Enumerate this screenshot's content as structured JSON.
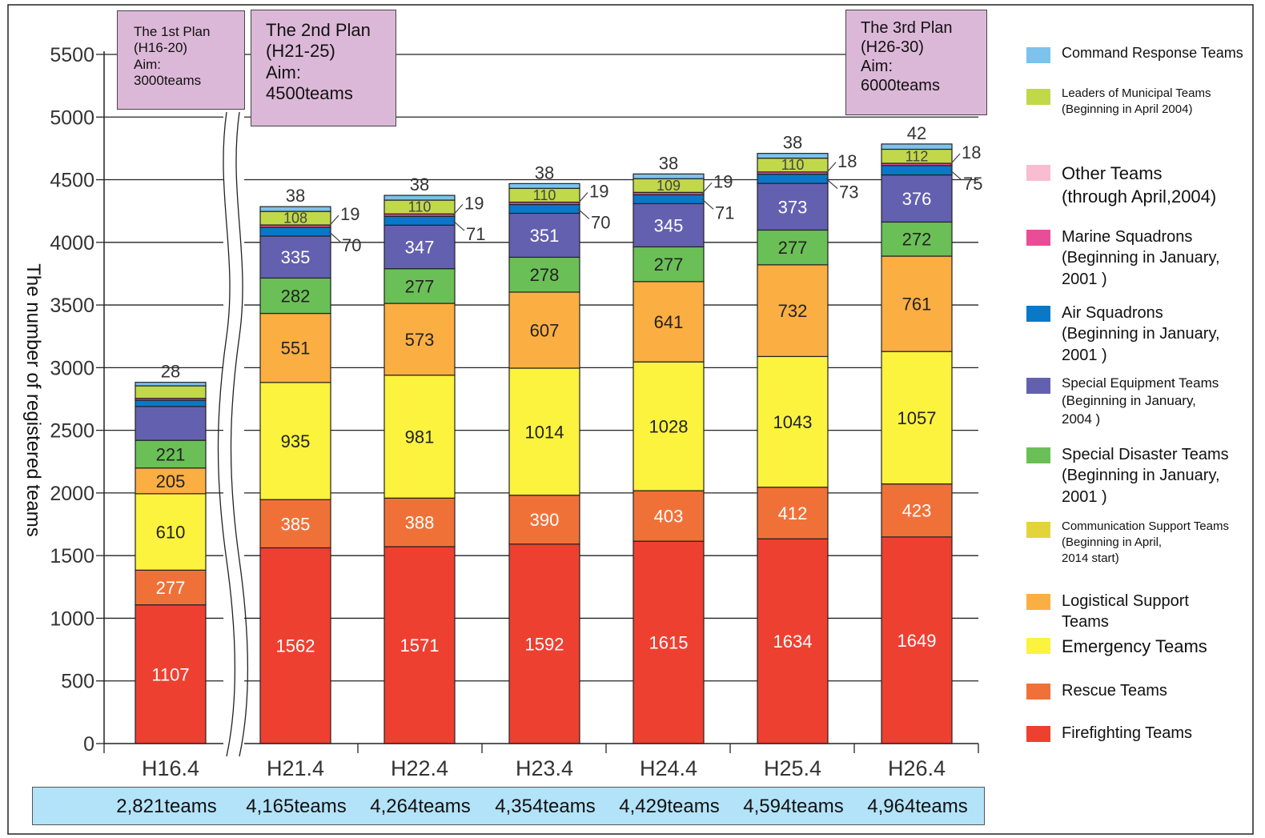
{
  "chart_data": {
    "type": "bar",
    "stacked": true,
    "ylabel": "The number of registered teams",
    "ylim": [
      0,
      5500
    ],
    "yticks": [
      0,
      500,
      1000,
      1500,
      2000,
      2500,
      3000,
      3500,
      4000,
      4500,
      5000,
      5500
    ],
    "grid": true,
    "legend_position": "right",
    "categories": [
      "H16.4",
      "H21.4",
      "H22.4",
      "H23.4",
      "H24.4",
      "H25.4",
      "H26.4"
    ],
    "totals": [
      "2,821teams",
      "4,165teams",
      "4,264teams",
      "4,354teams",
      "4,429teams",
      "4,594teams",
      "4,964teams"
    ],
    "plans": [
      {
        "label": "The 1st Plan\n(H16-20)\nAim:\n3000teams"
      },
      {
        "label": "The 2nd Plan\n(H21-25)\nAim:\n4500teams"
      },
      {
        "label": "The 3rd Plan\n(H26-30)\nAim:\n6000teams"
      }
    ],
    "series": [
      {
        "name": "Firefighting Teams",
        "color": "#ee4031",
        "values": [
          1107,
          1562,
          1571,
          1592,
          1615,
          1634,
          1649
        ]
      },
      {
        "name": "Rescue Teams",
        "color": "#f07138",
        "values": [
          277,
          385,
          388,
          390,
          403,
          412,
          423
        ]
      },
      {
        "name": "Emergency Teams",
        "color": "#fbf33d",
        "values": [
          610,
          935,
          981,
          1014,
          1028,
          1043,
          1057
        ]
      },
      {
        "name": "Logistical Support Teams",
        "color": "#fbae42",
        "values": [
          205,
          551,
          573,
          607,
          641,
          732,
          761
        ]
      },
      {
        "name": "Special Disaster Teams",
        "color": "#6ac056",
        "values": [
          221,
          282,
          277,
          278,
          277,
          277,
          272
        ]
      },
      {
        "name": "Special Equipment Teams",
        "color": "#6460b0",
        "values": [
          270,
          335,
          347,
          351,
          345,
          373,
          376
        ]
      },
      {
        "name": "Air Squadrons",
        "color": "#0a78c8",
        "values": [
          50,
          70,
          71,
          70,
          71,
          73,
          75
        ]
      },
      {
        "name": "Marine Squadrons",
        "color": "#e94d98",
        "values": [
          15,
          19,
          19,
          19,
          19,
          18,
          18
        ]
      },
      {
        "name": "Leaders of Municipal Teams",
        "color": "#c1d84a",
        "values": [
          100,
          108,
          110,
          110,
          109,
          110,
          112
        ]
      },
      {
        "name": "Command Response Teams",
        "color": "#7bc3ec",
        "values": [
          28,
          38,
          38,
          38,
          38,
          38,
          42
        ]
      }
    ],
    "data_labels": [
      [
        "1107",
        "277",
        "610",
        "205",
        "221",
        "",
        "",
        "",
        "",
        "28"
      ],
      [
        "1562",
        "385",
        "935",
        "551",
        "282",
        "335",
        "70",
        "19",
        "108",
        "38"
      ],
      [
        "1571",
        "388",
        "981",
        "573",
        "277",
        "347",
        "71",
        "19",
        "110",
        "38"
      ],
      [
        "1592",
        "390",
        "1014",
        "607",
        "278",
        "351",
        "70",
        "19",
        "110",
        "38"
      ],
      [
        "1615",
        "403",
        "1028",
        "641",
        "277",
        "345",
        "71",
        "19",
        "109",
        "38"
      ],
      [
        "1634",
        "412",
        "1043",
        "732",
        "277",
        "373",
        "73",
        "18",
        "110",
        "38"
      ],
      [
        "1649",
        "423",
        "1057",
        "761",
        "272",
        "376",
        "75",
        "18",
        "112",
        "42"
      ]
    ],
    "legend": [
      {
        "label": "Command Response Teams",
        "color": "#7bc3ec"
      },
      {
        "label": "Leaders of Municipal Teams\n(Beginning in April 2004)",
        "color": "#c1d84a"
      },
      {
        "label": "Other Teams\n(through April,2004)",
        "color": "#f8bdd0"
      },
      {
        "label": "Marine Squadrons\n(Beginning in January,\n2001 )",
        "color": "#e94d98"
      },
      {
        "label": "Air Squadrons\n(Beginning in January,\n2001 )",
        "color": "#0a78c8"
      },
      {
        "label": "Special Equipment Teams\n(Beginning in January,\n2004 )",
        "color": "#6460b0"
      },
      {
        "label": "Special Disaster Teams\n(Beginning in January,\n2001 )",
        "color": "#6ac056"
      },
      {
        "label": "Communication Support Teams\n(Beginning in April,\n2014 start)",
        "color": "#e4d43c"
      },
      {
        "label": "Logistical Support\nTeams",
        "color": "#fbae42"
      },
      {
        "label": "Emergency Teams",
        "color": "#fbf33d"
      },
      {
        "label": "Rescue Teams",
        "color": "#f07138"
      },
      {
        "label": "Firefighting Teams",
        "color": "#ee4031"
      }
    ]
  }
}
